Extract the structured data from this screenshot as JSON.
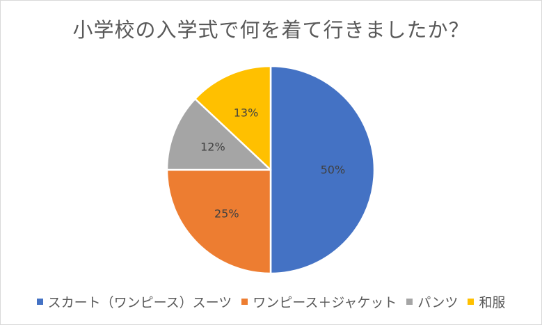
{
  "chart_data": {
    "type": "pie",
    "title": "小学校の入学式で何を着て行きましたか？",
    "categories": [
      "スカート（ワンピース）スーツ",
      "ワンピース＋ジャケット",
      "パンツ",
      "和服"
    ],
    "values": [
      50,
      25,
      12,
      13
    ],
    "labels": [
      "50%",
      "25%",
      "12%",
      "13%"
    ],
    "colors": [
      "#4472c4",
      "#ed7d31",
      "#a5a5a5",
      "#ffc000"
    ],
    "legend_position": "bottom"
  }
}
